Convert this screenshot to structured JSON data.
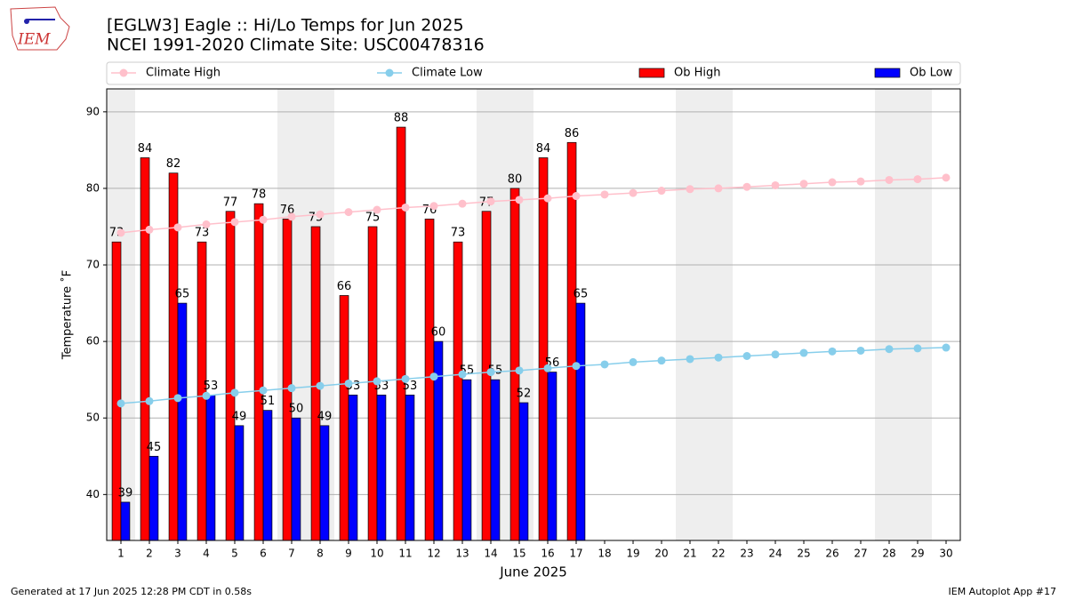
{
  "chart_data": {
    "type": "bar",
    "title": "[EGLW3] Eagle :: Hi/Lo Temps for Jun 2025",
    "subtitle": "NCEI 1991-2020 Climate Site: USC00478316",
    "logo_text": "IEM",
    "x_label": "June 2025",
    "y_label": "Temperature ˚F",
    "footer_left": "Generated at 17 Jun 2025 12:28 PM CDT in 0.58s",
    "footer_right": "IEM Autoplot App #17",
    "legend": "top",
    "grid": true,
    "categories": [
      "1",
      "2",
      "3",
      "4",
      "5",
      "6",
      "7",
      "8",
      "9",
      "10",
      "11",
      "12",
      "13",
      "14",
      "15",
      "16",
      "17",
      "18",
      "19",
      "20",
      "21",
      "22",
      "23",
      "24",
      "25",
      "26",
      "27",
      "28",
      "29",
      "30"
    ],
    "ylim": [
      34,
      93
    ],
    "yticks": [
      40,
      50,
      60,
      70,
      80,
      90
    ],
    "series": [
      {
        "name": "Climate High",
        "type": "line",
        "color": "#ffc0cb",
        "values": [
          74.2,
          74.6,
          74.9,
          75.3,
          75.6,
          75.9,
          76.3,
          76.6,
          76.9,
          77.2,
          77.5,
          77.7,
          78.0,
          78.3,
          78.5,
          78.7,
          79.0,
          79.2,
          79.4,
          79.7,
          79.9,
          80.0,
          80.2,
          80.4,
          80.6,
          80.8,
          80.9,
          81.1,
          81.2,
          81.4
        ]
      },
      {
        "name": "Climate Low",
        "type": "line",
        "color": "#87ceeb",
        "values": [
          51.9,
          52.2,
          52.6,
          52.9,
          53.3,
          53.6,
          53.9,
          54.2,
          54.5,
          54.8,
          55.1,
          55.4,
          55.7,
          56.0,
          56.2,
          56.5,
          56.8,
          57.0,
          57.3,
          57.5,
          57.7,
          57.9,
          58.1,
          58.3,
          58.5,
          58.7,
          58.8,
          59.0,
          59.1,
          59.2
        ]
      },
      {
        "name": "Ob High",
        "type": "bar",
        "color": "#ff0000",
        "values": [
          73,
          84,
          82,
          73,
          77,
          78,
          76,
          75,
          66,
          75,
          88,
          76,
          73,
          77,
          80,
          84,
          86,
          null,
          null,
          null,
          null,
          null,
          null,
          null,
          null,
          null,
          null,
          null,
          null,
          null
        ]
      },
      {
        "name": "Ob Low",
        "type": "bar",
        "color": "#0000ff",
        "values": [
          39,
          45,
          65,
          53,
          49,
          51,
          50,
          49,
          53,
          53,
          53,
          60,
          55,
          55,
          52,
          56,
          65,
          null,
          null,
          null,
          null,
          null,
          null,
          null,
          null,
          null,
          null,
          null,
          null,
          null
        ]
      }
    ]
  }
}
